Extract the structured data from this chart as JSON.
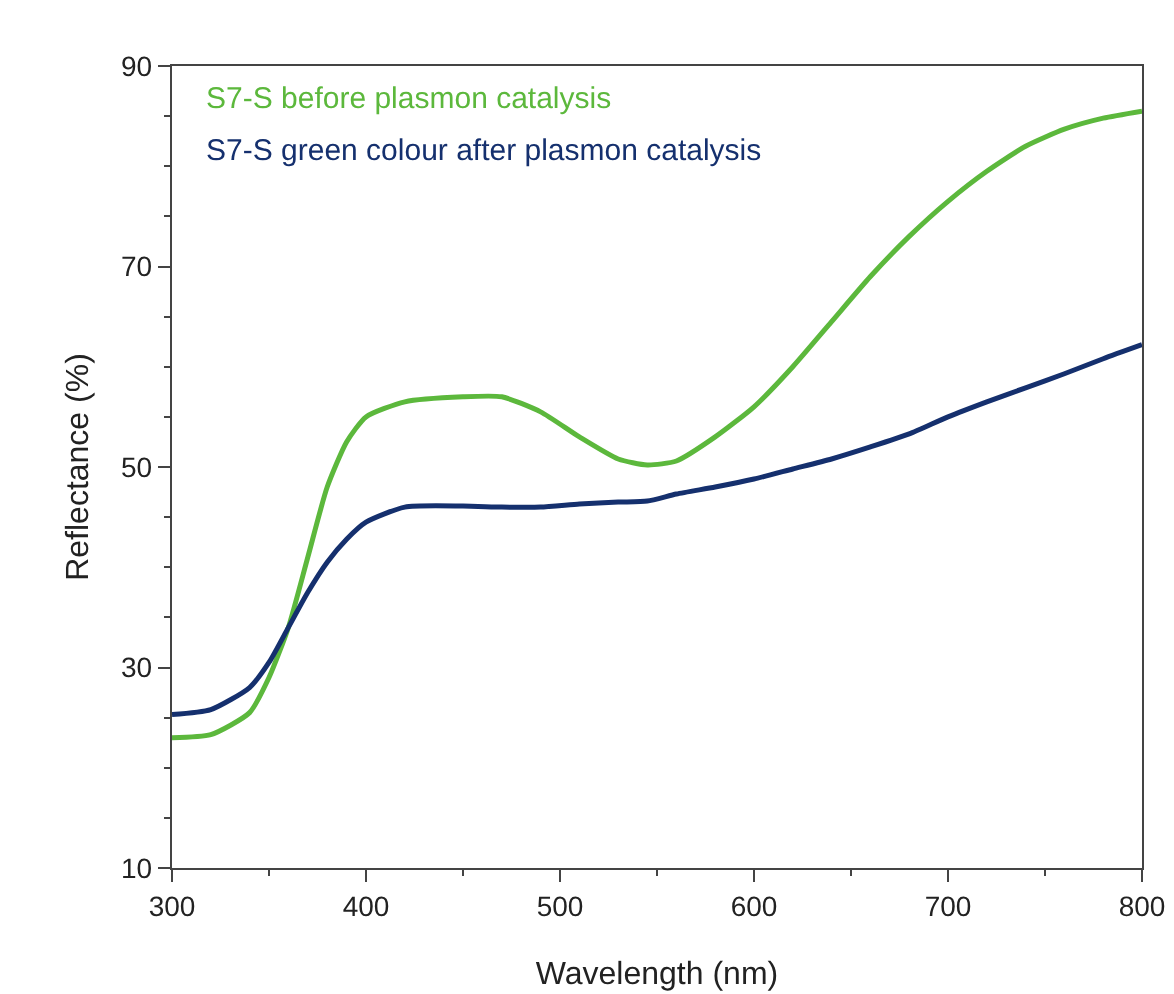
{
  "chart_data": {
    "type": "line",
    "xlabel": "Wavelength (nm)",
    "ylabel": "Reflectance (%)",
    "x": [
      300,
      320,
      340,
      350,
      360,
      370,
      380,
      390,
      400,
      420,
      450,
      470,
      490,
      510,
      530,
      545,
      560,
      580,
      600,
      620,
      640,
      660,
      680,
      700,
      720,
      740,
      760,
      780,
      800
    ],
    "series": [
      {
        "name": "S7-S before plasmon catalysis",
        "color": "#5cb83c",
        "values": [
          23.0,
          23.3,
          25.5,
          29,
          34,
          41,
          48,
          52.5,
          55,
          56.5,
          57,
          57,
          55.5,
          53,
          50.8,
          50.2,
          50.6,
          53,
          56,
          60,
          64.5,
          69,
          73,
          76.5,
          79.5,
          82,
          83.7,
          84.8,
          85.5
        ]
      },
      {
        "name": "S7-S green colour after plasmon catalysis",
        "color": "#15306e",
        "values": [
          25.3,
          25.8,
          28,
          30.5,
          34,
          37.5,
          40.5,
          42.8,
          44.5,
          46,
          46.1,
          46,
          46,
          46.3,
          46.5,
          46.6,
          47.3,
          48,
          48.8,
          49.8,
          50.8,
          52,
          53.3,
          55,
          56.5,
          57.9,
          59.3,
          60.8,
          62.2
        ]
      }
    ],
    "xlim": [
      300,
      800
    ],
    "xticks": [
      300,
      400,
      500,
      600,
      700,
      800
    ],
    "ylim": [
      10,
      90
    ],
    "yticks": [
      10,
      30,
      50,
      70,
      90
    ],
    "grid": false,
    "marker": "none",
    "line_style": "solid"
  }
}
